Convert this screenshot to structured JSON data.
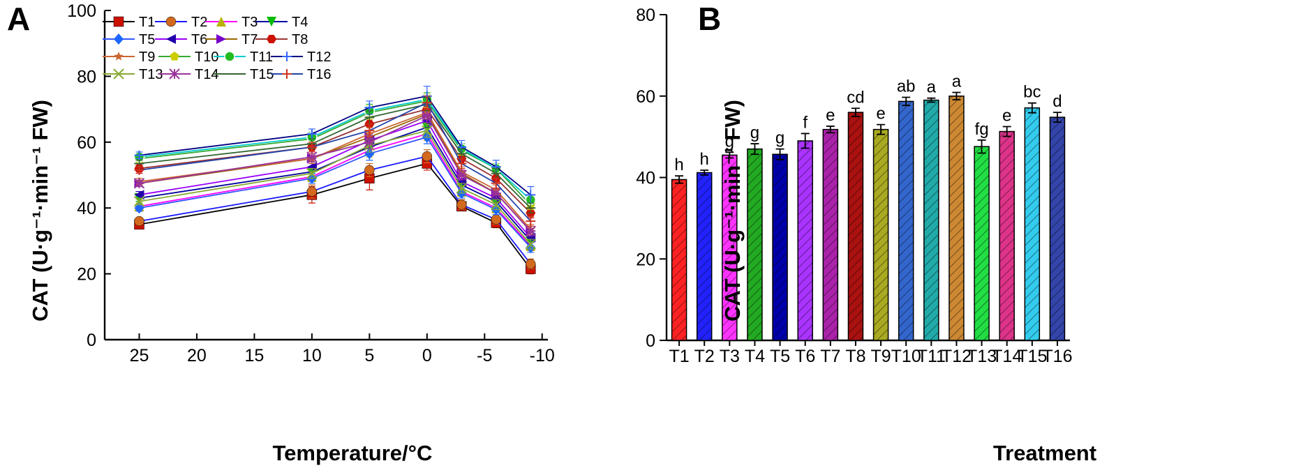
{
  "chart_data": [
    {
      "panel_label": "A",
      "type": "line",
      "xlabel": "Temperature/°C",
      "ylabel": "CAT (U·g⁻¹·min⁻¹ FW)",
      "x": [
        25,
        10,
        5,
        0,
        -3,
        -6,
        -9
      ],
      "xlim": [
        28,
        -10.5
      ],
      "ylim": [
        0,
        100
      ],
      "xticks": [
        25,
        20,
        15,
        10,
        5,
        0,
        -5,
        -10
      ],
      "xtick_labels": [
        "25",
        "20",
        "15",
        "10",
        "5",
        "0",
        "-5",
        "-10"
      ],
      "yticks": [
        0,
        20,
        40,
        60,
        80,
        100
      ],
      "ytick_labels": [
        "0",
        "20",
        "40",
        "60",
        "80",
        "100"
      ],
      "legend_position": "top-left",
      "series": [
        {
          "name": "T1",
          "color": "#000000",
          "marker_color": "#cc1100",
          "marker": "square",
          "values": [
            35,
            44,
            49,
            53.5,
            40.5,
            35.5,
            21.5
          ],
          "errors": [
            1,
            2.5,
            3.5,
            2,
            1,
            1.5,
            1.5
          ]
        },
        {
          "name": "T2",
          "color": "#1a1aff",
          "marker_color": "#d2691e",
          "marker": "circle",
          "values": [
            36,
            45,
            51.5,
            55.7,
            41,
            36.5,
            23
          ],
          "errors": [
            1,
            2,
            2,
            2,
            1.5,
            1.5,
            1.5
          ]
        },
        {
          "name": "T3",
          "color": "#ff00ff",
          "marker_color": "#b8b000",
          "marker": "triangle-up",
          "values": [
            40.5,
            49.5,
            57.5,
            62.5,
            45,
            40,
            28.5
          ],
          "errors": [
            1,
            1.5,
            2,
            2,
            1.5,
            1.5,
            1.5
          ]
        },
        {
          "name": "T4",
          "color": "#0000a0",
          "marker_color": "#00bb00",
          "marker": "triangle-down",
          "values": [
            43,
            51,
            58.5,
            64.5,
            47,
            42,
            30
          ],
          "errors": [
            1,
            1.5,
            2,
            2,
            1.5,
            1.5,
            1.5
          ]
        },
        {
          "name": "T5",
          "color": "#3355ff",
          "marker_color": "#1e66ff",
          "marker": "diamond",
          "values": [
            40,
            49,
            56.5,
            61.5,
            44.5,
            39.5,
            28
          ],
          "errors": [
            1,
            1.5,
            2,
            2,
            1.5,
            1.5,
            1.5
          ]
        },
        {
          "name": "T6",
          "color": "#9900ff",
          "marker_color": "#2200aa",
          "marker": "triangle-left",
          "values": [
            44,
            52.5,
            60.5,
            66.5,
            48,
            43,
            31
          ],
          "errors": [
            1,
            1.5,
            2,
            2,
            1.5,
            1.5,
            1.5
          ]
        },
        {
          "name": "T7",
          "color": "#996600",
          "marker_color": "#7700cc",
          "marker": "triangle-right",
          "values": [
            47.5,
            55,
            61.5,
            68.5,
            50.5,
            44.5,
            33
          ],
          "errors": [
            1,
            1.5,
            2,
            2,
            1.5,
            1.5,
            1.5
          ]
        },
        {
          "name": "T8",
          "color": "#993333",
          "marker_color": "#cc1100",
          "marker": "hexagon",
          "values": [
            52,
            58.5,
            65.5,
            70,
            55,
            49,
            38.5
          ],
          "errors": [
            1,
            1.5,
            2,
            2,
            1.5,
            1.5,
            1.5
          ]
        },
        {
          "name": "T9",
          "color": "#cc6633",
          "marker_color": "#cc6633",
          "marker": "star",
          "values": [
            48,
            55,
            62.5,
            69,
            51,
            45.5,
            33.5
          ],
          "errors": [
            1,
            1.5,
            2,
            2,
            1.5,
            1.5,
            1.5
          ]
        },
        {
          "name": "T10",
          "color": "#33aa33",
          "marker_color": "#cccc00",
          "marker": "pentagon",
          "values": [
            55,
            61,
            69,
            72.5,
            57.5,
            52,
            41
          ],
          "errors": [
            1,
            1.5,
            2,
            2,
            1.5,
            1.5,
            1.5
          ]
        },
        {
          "name": "T11",
          "color": "#00cccc",
          "marker_color": "#22bb22",
          "marker": "ball",
          "values": [
            55.5,
            61.5,
            69.5,
            73,
            58,
            52,
            42.5
          ],
          "errors": [
            1,
            1.5,
            2,
            2,
            1.5,
            1.5,
            1.5
          ]
        },
        {
          "name": "T12",
          "color": "#000080",
          "marker_color": "#3366ff",
          "marker": "plus",
          "values": [
            56,
            62.5,
            70.5,
            74,
            58.5,
            52.5,
            44
          ],
          "errors": [
            1,
            1.5,
            2,
            3,
            2,
            2,
            2.5
          ]
        },
        {
          "name": "T13",
          "color": "#88aa33",
          "marker_color": "#88aa33",
          "marker": "x",
          "values": [
            42,
            50.5,
            59,
            63.5,
            46,
            41,
            29
          ],
          "errors": [
            1,
            1.5,
            2,
            2,
            1.5,
            1.5,
            1.5
          ]
        },
        {
          "name": "T14",
          "color": "#993399",
          "marker_color": "#993399",
          "marker": "asterisk",
          "values": [
            47.5,
            55.5,
            60,
            68,
            50,
            44.5,
            33
          ],
          "errors": [
            1,
            1.5,
            2,
            2,
            1.5,
            1.5,
            1.5
          ]
        },
        {
          "name": "T15",
          "color": "#336633",
          "marker_color": "#336633",
          "marker": "dash",
          "values": [
            53.5,
            59.5,
            67.5,
            71.5,
            56.5,
            50.5,
            40
          ],
          "errors": [
            1,
            1.5,
            2,
            2,
            1.5,
            1.5,
            1.5
          ]
        },
        {
          "name": "T16",
          "color": "#2244aa",
          "marker_color": "#cc3322",
          "marker": "plus",
          "values": [
            51.5,
            58.5,
            63.5,
            72,
            53.5,
            47.5,
            36
          ],
          "errors": [
            1,
            1.5,
            2,
            2,
            1.5,
            1.5,
            1.5
          ]
        }
      ]
    },
    {
      "panel_label": "B",
      "type": "bar",
      "xlabel": "Treatment",
      "ylabel": "CAT (U·g⁻¹·min⁻¹ FW)",
      "ylim": [
        0,
        80
      ],
      "yticks": [
        0,
        20,
        40,
        60,
        80
      ],
      "ytick_labels": [
        "0",
        "20",
        "40",
        "60",
        "80"
      ],
      "categories": [
        "T1",
        "T2",
        "T3",
        "T4",
        "T5",
        "T6",
        "T7",
        "T8",
        "T9",
        "T10",
        "T11",
        "T12",
        "T13",
        "T14",
        "T15",
        "T16"
      ],
      "values": [
        39.5,
        41.2,
        45.5,
        47,
        45.7,
        49,
        51.8,
        56,
        51.8,
        58.7,
        59,
        60,
        47.6,
        51.3,
        57.1,
        54.8
      ],
      "errors": [
        0.9,
        0.6,
        0.7,
        1.3,
        1.3,
        1.8,
        0.8,
        1.0,
        1.2,
        1.0,
        0.5,
        0.9,
        1.6,
        1.2,
        1.2,
        1.2
      ],
      "significance": [
        "h",
        "h",
        "g",
        "g",
        "g",
        "f",
        "e",
        "cd",
        "e",
        "ab",
        "a",
        "a",
        "fg",
        "e",
        "bc",
        "d"
      ],
      "colors": [
        "#ff2222",
        "#2222ff",
        "#ff33ff",
        "#22aa22",
        "#0000aa",
        "#aa33ff",
        "#aa22aa",
        "#aa1111",
        "#aaaa22",
        "#3366cc",
        "#22aaaa",
        "#cc8833",
        "#22dd44",
        "#dd3388",
        "#33ccee",
        "#3344aa"
      ],
      "pattern": "diagonal-hatch"
    }
  ]
}
